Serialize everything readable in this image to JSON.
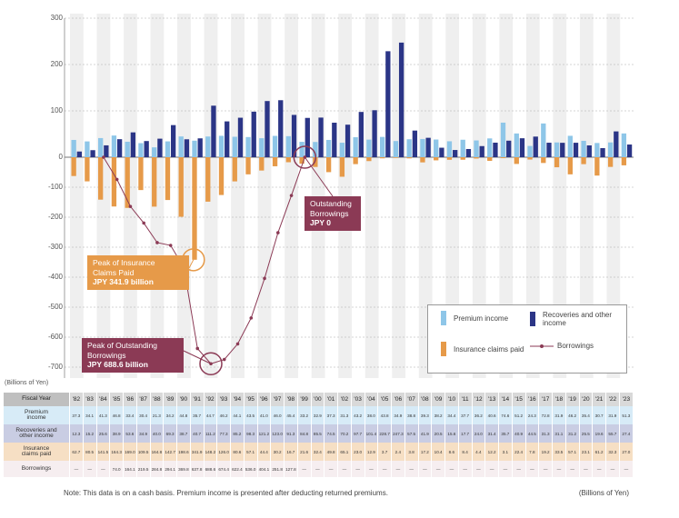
{
  "chart_data": {
    "type": "bar",
    "y_axis_label": "(Billions of Yen)",
    "categories": [
      "'82",
      "'83",
      "'84",
      "'85",
      "'86",
      "'87",
      "'88",
      "'89",
      "'90",
      "'91",
      "'92",
      "'93",
      "'94",
      "'95",
      "'96",
      "'97",
      "'98",
      "'99",
      "'00",
      "'01",
      "'02",
      "'03",
      "'04",
      "'05",
      "'06",
      "'07",
      "'08",
      "'09",
      "'10",
      "'11",
      "'12",
      "'13",
      "'14",
      "'15",
      "'16",
      "'17",
      "'18",
      "'19",
      "'20",
      "'21",
      "'22",
      "'23"
    ],
    "ylim": [
      -700,
      300
    ],
    "yticks": [
      300,
      200,
      100,
      0,
      -100,
      -200,
      -300,
      -400,
      -500,
      -600,
      -700
    ],
    "grid": true,
    "series": [
      {
        "name": "Premium income",
        "color": "#8ec6e8",
        "kind": "bar",
        "values": [
          37.3,
          34.1,
          41.3,
          46.8,
          33.4,
          30.4,
          21.3,
          34.2,
          44.8,
          35.7,
          44.7,
          46.2,
          44.1,
          43.5,
          41.0,
          46.0,
          45.4,
          33.2,
          32.9,
          37.3,
          31.3,
          43.2,
          38.0,
          43.8,
          34.9,
          38.8,
          39.3,
          38.2,
          34.4,
          37.7,
          36.2,
          40.6,
          74.6,
          51.2,
          24.3,
          72.8,
          31.9,
          46.2,
          35.4,
          30.7,
          31.9,
          51.3
        ]
      },
      {
        "name": "Recoveries and other income",
        "color": "#2b3586",
        "kind": "bar",
        "values": [
          12.3,
          15.2,
          25.6,
          38.9,
          53.6,
          34.9,
          40.0,
          69.3,
          38.7,
          40.7,
          111.2,
          77.3,
          85.2,
          98.3,
          121.2,
          123.0,
          91.3,
          84.8,
          85.5,
          74.5,
          70.2,
          97.7,
          101.4,
          228.7,
          247.3,
          57.5,
          41.9,
          20.5,
          15.6,
          17.7,
          24.0,
          31.4,
          35.7,
          40.9,
          44.5,
          31.3,
          31.1,
          31.2,
          25.5,
          19.6,
          55.7,
          27.4
        ]
      },
      {
        "name": "Insurance claims paid",
        "color": "#e69a49",
        "kind": "bar",
        "values": [
          -62.7,
          -80.5,
          -141.5,
          -164.3,
          -169.0,
          -109.5,
          -164.8,
          -142.7,
          -198.6,
          -341.9,
          -148.2,
          -126.0,
          -80.6,
          -57.1,
          -44.4,
          -30.2,
          -16.7,
          -21.6,
          -32.4,
          -49.8,
          -65.1,
          -23.0,
          -12.9,
          -3.7,
          -2.4,
          -3.8,
          -17.2,
          -10.4,
          -8.6,
          -8.4,
          -4.4,
          -12.2,
          -3.1,
          -22.4,
          -7.8,
          -19.2,
          -33.5,
          -57.1,
          -23.1,
          -61.2,
          -32.3,
          -27.0
        ]
      },
      {
        "name": "Borrowings",
        "color": "#8b3a55",
        "kind": "line",
        "values": [
          null,
          null,
          0,
          -74.0,
          -164.1,
          -219.5,
          -284.8,
          -294.1,
          -369.8,
          -637.8,
          -688.6,
          -674.4,
          -622.4,
          -536.0,
          -404.1,
          -251.8,
          -127.8,
          0,
          null,
          null,
          null,
          null,
          null,
          null,
          null,
          null,
          null,
          null,
          null,
          null,
          null,
          null,
          null,
          null,
          null,
          null,
          null,
          null,
          null,
          null,
          null,
          null
        ]
      }
    ],
    "annotations": [
      {
        "lines": [
          "Peak of Insurance",
          "Claims Paid",
          "JPY 341.9 billion"
        ],
        "color": "#e69a49",
        "series": 2,
        "index": 9
      },
      {
        "lines": [
          "Peak of Outstanding",
          "Borrowings",
          "JPY 688.6 billion"
        ],
        "color": "#8b3a55",
        "series": 3,
        "index": 10
      },
      {
        "lines": [
          "Outstanding",
          "Borrowings",
          "JPY 0"
        ],
        "color": "#8b3a55",
        "series": 3,
        "index": 17
      }
    ]
  },
  "table": {
    "header": "Fiscal Year",
    "rows": [
      {
        "label": [
          "Premium",
          "income"
        ],
        "cells": [
          "37.3",
          "34.1",
          "41.3",
          "46.8",
          "33.4",
          "30.4",
          "21.3",
          "34.2",
          "44.8",
          "35.7",
          "44.7",
          "46.2",
          "44.1",
          "43.5",
          "41.0",
          "46.0",
          "45.4",
          "33.2",
          "32.9",
          "37.3",
          "31.3",
          "43.2",
          "38.0",
          "43.8",
          "34.9",
          "38.8",
          "39.3",
          "38.2",
          "34.4",
          "37.7",
          "36.2",
          "40.6",
          "74.6",
          "51.2",
          "24.3",
          "72.8",
          "31.9",
          "46.2",
          "35.4",
          "30.7",
          "31.9",
          "51.3"
        ]
      },
      {
        "label": [
          "Recoveries and",
          "other income"
        ],
        "cells": [
          "12.3",
          "15.2",
          "25.6",
          "38.9",
          "53.6",
          "34.9",
          "40.0",
          "69.3",
          "38.7",
          "40.7",
          "111.2",
          "77.3",
          "85.2",
          "98.3",
          "121.2",
          "123.0",
          "91.3",
          "84.8",
          "85.5",
          "74.5",
          "70.2",
          "97.7",
          "101.4",
          "228.7",
          "247.3",
          "57.5",
          "41.9",
          "20.5",
          "15.6",
          "17.7",
          "24.0",
          "31.4",
          "35.7",
          "40.9",
          "44.5",
          "31.3",
          "31.1",
          "31.2",
          "25.5",
          "19.6",
          "55.7",
          "27.4"
        ]
      },
      {
        "label": [
          "Insurance",
          "claims paid"
        ],
        "cells": [
          "62.7",
          "80.5",
          "141.5",
          "164.3",
          "169.0",
          "109.5",
          "164.8",
          "142.7",
          "198.6",
          "341.9",
          "148.2",
          "126.0",
          "80.6",
          "57.1",
          "44.4",
          "30.2",
          "16.7",
          "21.6",
          "32.4",
          "49.8",
          "65.1",
          "23.0",
          "12.9",
          "3.7",
          "2.4",
          "3.8",
          "17.2",
          "10.4",
          "8.6",
          "8.4",
          "4.4",
          "12.2",
          "3.1",
          "22.4",
          "7.8",
          "19.2",
          "33.5",
          "57.1",
          "23.1",
          "61.2",
          "32.3",
          "27.0"
        ]
      },
      {
        "label": [
          "Borrowings"
        ],
        "cells": [
          "—",
          "—",
          "—",
          "74.0",
          "164.1",
          "219.5",
          "284.8",
          "294.1",
          "369.8",
          "637.8",
          "688.6",
          "674.4",
          "622.4",
          "536.0",
          "404.1",
          "251.8",
          "127.8",
          "—",
          "—",
          "—",
          "—",
          "—",
          "—",
          "—",
          "—",
          "—",
          "—",
          "—",
          "—",
          "—",
          "—",
          "—",
          "—",
          "—",
          "—",
          "—",
          "—",
          "—",
          "—",
          "—",
          "—",
          "—"
        ]
      }
    ]
  },
  "footer": {
    "note": "Note: This data is on a cash basis. Premium income is presented after deducting returned premiums.",
    "unit": "(Billions of Yen)"
  }
}
